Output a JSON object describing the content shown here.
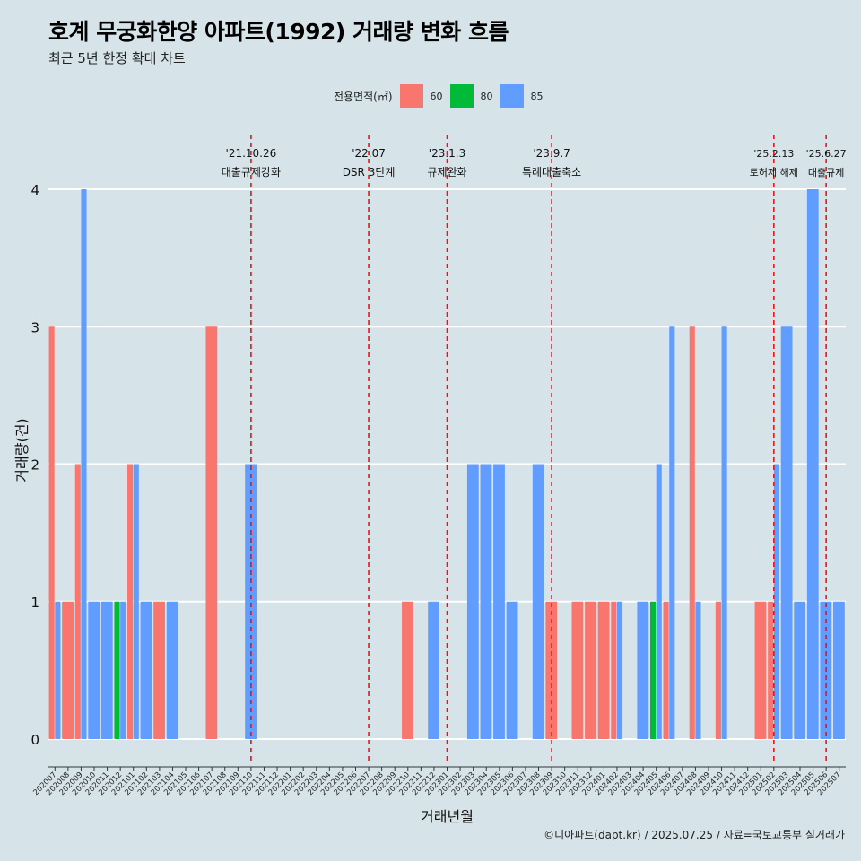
{
  "header": {
    "title": "호계 무궁화한양 아파트(1992) 거래량 변화 흐름",
    "subtitle": "최근 5년 한정 확대 차트"
  },
  "legend": {
    "title": "전용면적(㎡)",
    "items": [
      {
        "label": "60",
        "color": "#f8766d"
      },
      {
        "label": "80",
        "color": "#00ba38"
      },
      {
        "label": "85",
        "color": "#619cff"
      }
    ]
  },
  "caption": "©디아파트(dapt.kr) / 2025.07.25 / 자료=국토교통부 실거래가",
  "chart_data": {
    "type": "bar",
    "stacking": "dodge",
    "xlabel": "거래년월",
    "ylabel": "거래량(건)",
    "ylim": [
      0,
      4
    ],
    "yticks": [
      0,
      1,
      2,
      3,
      4
    ],
    "grid": true,
    "legend_position": "top",
    "categories": [
      "202007",
      "202008",
      "202009",
      "202010",
      "202011",
      "202012",
      "202101",
      "202102",
      "202103",
      "202104",
      "202105",
      "202106",
      "202107",
      "202108",
      "202109",
      "202110",
      "202111",
      "202112",
      "202201",
      "202202",
      "202203",
      "202204",
      "202205",
      "202206",
      "202207",
      "202208",
      "202209",
      "202210",
      "202211",
      "202212",
      "202301",
      "202302",
      "202303",
      "202304",
      "202305",
      "202306",
      "202307",
      "202308",
      "202309",
      "202310",
      "202311",
      "202312",
      "202401",
      "202402",
      "202403",
      "202404",
      "202405",
      "202406",
      "202407",
      "202408",
      "202409",
      "202410",
      "202411",
      "202412",
      "202501",
      "202502",
      "202503",
      "202504",
      "202505",
      "202506",
      "202507"
    ],
    "series": [
      {
        "name": "60",
        "color": "#f8766d",
        "values": [
          3,
          1,
          2,
          0,
          0,
          0,
          2,
          0,
          1,
          0,
          0,
          0,
          3,
          0,
          0,
          0,
          0,
          0,
          0,
          0,
          0,
          0,
          0,
          0,
          0,
          0,
          0,
          1,
          0,
          0,
          0,
          0,
          0,
          0,
          0,
          0,
          0,
          0,
          1,
          0,
          1,
          1,
          1,
          1,
          0,
          0,
          0,
          1,
          0,
          3,
          0,
          1,
          0,
          0,
          1,
          1,
          0,
          0,
          0,
          0,
          0
        ]
      },
      {
        "name": "80",
        "color": "#00ba38",
        "values": [
          0,
          0,
          0,
          0,
          0,
          1,
          0,
          0,
          0,
          0,
          0,
          0,
          0,
          0,
          0,
          0,
          0,
          0,
          0,
          0,
          0,
          0,
          0,
          0,
          0,
          0,
          0,
          0,
          0,
          0,
          0,
          0,
          0,
          0,
          0,
          0,
          0,
          0,
          0,
          0,
          0,
          0,
          0,
          0,
          0,
          0,
          1,
          0,
          0,
          0,
          0,
          0,
          0,
          0,
          0,
          0,
          0,
          0,
          0,
          0,
          0
        ]
      },
      {
        "name": "85",
        "color": "#619cff",
        "values": [
          1,
          0,
          4,
          1,
          1,
          1,
          2,
          1,
          0,
          1,
          0,
          0,
          0,
          0,
          0,
          2,
          0,
          0,
          0,
          0,
          0,
          0,
          0,
          0,
          0,
          0,
          0,
          0,
          0,
          1,
          0,
          0,
          2,
          2,
          2,
          1,
          0,
          2,
          0,
          0,
          0,
          0,
          0,
          1,
          0,
          1,
          2,
          3,
          0,
          1,
          0,
          3,
          0,
          0,
          0,
          2,
          3,
          1,
          4,
          1,
          1
        ]
      }
    ],
    "annotations": [
      {
        "month": "202110",
        "date": "'21.10.26",
        "label": "대출규제강화"
      },
      {
        "month": "202207",
        "date": "'22.07",
        "label": "DSR 3단계"
      },
      {
        "month": "202301",
        "date": "'23.1.3",
        "label": "규제완화"
      },
      {
        "month": "202309",
        "date": "'23.9.7",
        "label": "특례대출축소"
      },
      {
        "month": "202502",
        "date": "'25.2.13",
        "label": "토허제 해제"
      },
      {
        "month": "202506",
        "date": "'25.6.27",
        "label": "대출규제"
      }
    ]
  }
}
